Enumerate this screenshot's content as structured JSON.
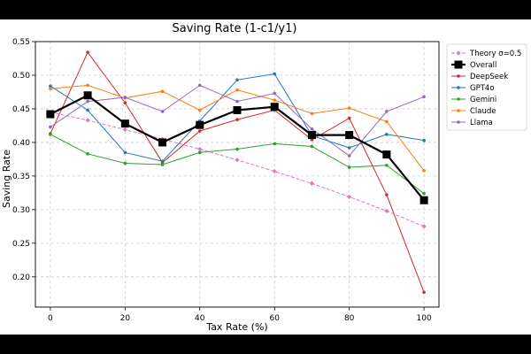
{
  "chart_data": {
    "type": "line",
    "title": "Saving Rate (1-c1/y1)",
    "xlabel": "Tax Rate (%)",
    "ylabel": "Saving Rate",
    "xlim": [
      -4,
      104
    ],
    "ylim": [
      0.155,
      0.55
    ],
    "xticks": [
      0,
      20,
      40,
      60,
      80,
      100
    ],
    "yticks": [
      0.2,
      0.25,
      0.3,
      0.35,
      0.4,
      0.45,
      0.5,
      0.55
    ],
    "xtick_labels": [
      "0",
      "20",
      "40",
      "60",
      "80",
      "100"
    ],
    "ytick_labels": [
      "0.20",
      "0.25",
      "0.30",
      "0.35",
      "0.40",
      "0.45",
      "0.50",
      "0.55"
    ],
    "grid": true,
    "legend_position": "outside-right",
    "x": [
      0,
      10,
      20,
      30,
      40,
      50,
      60,
      70,
      80,
      90,
      100
    ],
    "series": [
      {
        "name": "Theory σ=0.5",
        "color": "#e377c2",
        "style": "dashed",
        "marker": "diamond",
        "values": [
          0.445,
          0.433,
          0.419,
          0.405,
          0.39,
          0.374,
          0.357,
          0.339,
          0.319,
          0.298,
          0.275
        ]
      },
      {
        "name": "Overall",
        "color": "#000000",
        "style": "solid",
        "marker": "square",
        "bold": true,
        "values": [
          0.442,
          0.47,
          0.428,
          0.4,
          0.426,
          0.448,
          0.453,
          0.411,
          0.411,
          0.382,
          0.314
        ]
      },
      {
        "name": "DeepSeek",
        "color": "#d62728",
        "style": "solid",
        "marker": "dot",
        "values": [
          0.413,
          0.534,
          0.459,
          0.37,
          0.417,
          0.434,
          0.448,
          0.404,
          0.436,
          0.322,
          0.177
        ]
      },
      {
        "name": "GPT4o",
        "color": "#1f77b4",
        "style": "solid",
        "marker": "dot",
        "values": [
          0.484,
          0.448,
          0.385,
          0.372,
          0.432,
          0.493,
          0.502,
          0.41,
          0.392,
          0.412,
          0.403
        ]
      },
      {
        "name": "Gemini",
        "color": "#2ca02c",
        "style": "solid",
        "marker": "dot",
        "values": [
          0.412,
          0.383,
          0.369,
          0.367,
          0.385,
          0.39,
          0.398,
          0.394,
          0.363,
          0.366,
          0.324
        ]
      },
      {
        "name": "Claude",
        "color": "#ff7f0e",
        "style": "solid",
        "marker": "dot",
        "values": [
          0.48,
          0.485,
          0.466,
          0.476,
          0.448,
          0.478,
          0.463,
          0.443,
          0.451,
          0.431,
          0.358
        ]
      },
      {
        "name": "Llama",
        "color": "#9467bd",
        "style": "solid",
        "marker": "dot",
        "values": [
          0.423,
          0.461,
          0.467,
          0.446,
          0.485,
          0.461,
          0.473,
          0.42,
          0.38,
          0.446,
          0.468
        ]
      }
    ]
  }
}
